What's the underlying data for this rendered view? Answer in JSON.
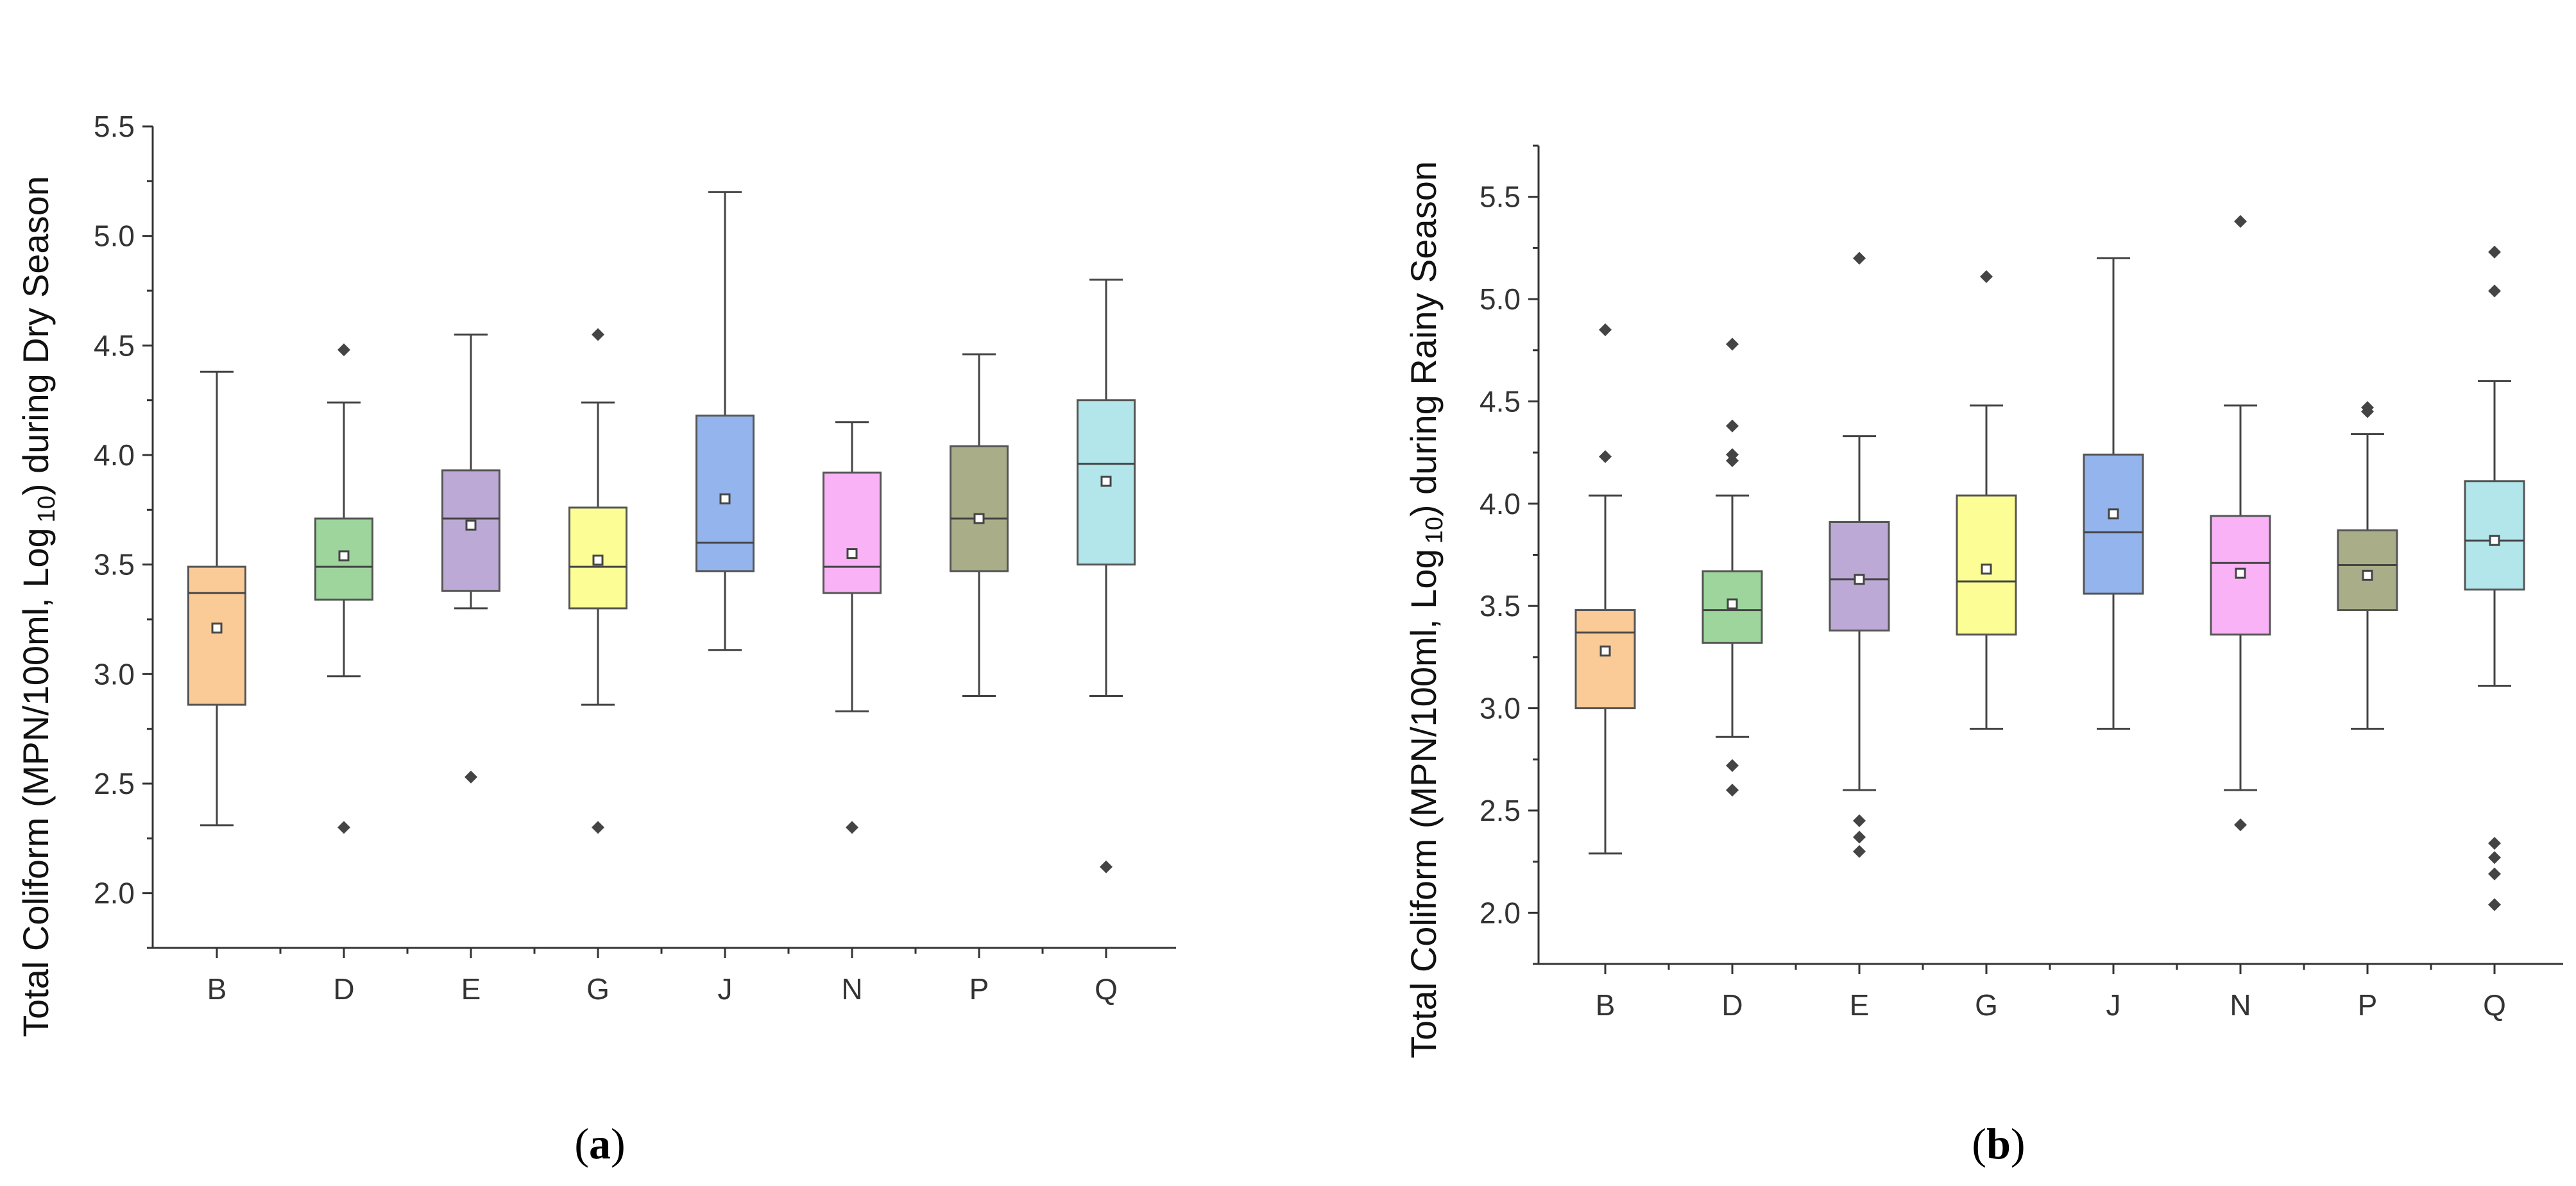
{
  "chart_data": [
    {
      "type": "box",
      "panel_label": "a",
      "ylabel": {
        "main": "Total Coliform (MPN/100ml, Log",
        "subscript": "10",
        "suffix": ") during Dry Season"
      },
      "ylim": [
        1.75,
        5.5
      ],
      "yticks": [
        "2.0",
        "2.5",
        "3.0",
        "3.5",
        "4.0",
        "4.5",
        "5.0",
        "5.5"
      ],
      "categories": [
        "B",
        "D",
        "E",
        "G",
        "J",
        "N",
        "P",
        "Q"
      ],
      "colors": [
        "#FBCB97",
        "#9DD59D",
        "#BCA9D5",
        "#FDFD96",
        "#94B4EE",
        "#F9B2F5",
        "#A9AE88",
        "#B3E6EB"
      ],
      "boxes": [
        {
          "min": 2.31,
          "q1": 2.86,
          "median": 3.37,
          "q3": 3.49,
          "max": 4.38,
          "mean": 3.21,
          "outliers": []
        },
        {
          "min": 2.99,
          "q1": 3.34,
          "median": 3.49,
          "q3": 3.71,
          "max": 4.24,
          "mean": 3.54,
          "outliers": [
            4.48,
            2.3
          ]
        },
        {
          "min": 3.3,
          "q1": 3.38,
          "median": 3.71,
          "q3": 3.93,
          "max": 4.55,
          "mean": 3.68,
          "outliers": [
            2.53
          ]
        },
        {
          "min": 2.86,
          "q1": 3.3,
          "median": 3.49,
          "q3": 3.76,
          "max": 4.24,
          "mean": 3.52,
          "outliers": [
            4.55,
            2.3
          ]
        },
        {
          "min": 3.11,
          "q1": 3.47,
          "median": 3.6,
          "q3": 4.18,
          "max": 5.2,
          "mean": 3.8,
          "outliers": []
        },
        {
          "min": 2.83,
          "q1": 3.37,
          "median": 3.49,
          "q3": 3.92,
          "max": 4.15,
          "mean": 3.55,
          "outliers": [
            2.3
          ]
        },
        {
          "min": 2.9,
          "q1": 3.47,
          "median": 3.71,
          "q3": 4.04,
          "max": 4.46,
          "mean": 3.71,
          "outliers": []
        },
        {
          "min": 2.9,
          "q1": 3.5,
          "median": 3.96,
          "q3": 4.25,
          "max": 4.8,
          "mean": 3.88,
          "outliers": [
            2.12
          ]
        }
      ]
    },
    {
      "type": "box",
      "panel_label": "b",
      "ylabel": {
        "main": "Total Coliform (MPN/100ml, Log",
        "subscript": "10",
        "suffix": ") during Rainy Season"
      },
      "ylim": [
        1.75,
        5.75
      ],
      "yticks": [
        "2.0",
        "2.5",
        "3.0",
        "3.5",
        "4.0",
        "4.5",
        "5.0",
        "5.5"
      ],
      "categories": [
        "B",
        "D",
        "E",
        "G",
        "J",
        "N",
        "P",
        "Q"
      ],
      "colors": [
        "#FBCB97",
        "#9DD59D",
        "#BCA9D5",
        "#FDFD96",
        "#94B4EE",
        "#F9B2F5",
        "#A9AE88",
        "#B3E6EB"
      ],
      "boxes": [
        {
          "min": 2.29,
          "q1": 3.0,
          "median": 3.37,
          "q3": 3.48,
          "max": 4.04,
          "mean": 3.28,
          "outliers": [
            4.85,
            4.23
          ]
        },
        {
          "min": 2.86,
          "q1": 3.32,
          "median": 3.48,
          "q3": 3.67,
          "max": 4.04,
          "mean": 3.51,
          "outliers": [
            4.78,
            4.38,
            4.24,
            4.21,
            2.72,
            2.6
          ]
        },
        {
          "min": 2.6,
          "q1": 3.38,
          "median": 3.63,
          "q3": 3.91,
          "max": 4.33,
          "mean": 3.63,
          "outliers": [
            5.2,
            2.45,
            2.37,
            2.3
          ]
        },
        {
          "min": 2.9,
          "q1": 3.36,
          "median": 3.62,
          "q3": 4.04,
          "max": 4.48,
          "mean": 3.68,
          "outliers": [
            5.11
          ]
        },
        {
          "min": 2.9,
          "q1": 3.56,
          "median": 3.86,
          "q3": 4.24,
          "max": 5.2,
          "mean": 3.95,
          "outliers": []
        },
        {
          "min": 2.6,
          "q1": 3.36,
          "median": 3.71,
          "q3": 3.94,
          "max": 4.48,
          "mean": 3.66,
          "outliers": [
            5.38,
            2.43
          ]
        },
        {
          "min": 2.9,
          "q1": 3.48,
          "median": 3.7,
          "q3": 3.87,
          "max": 4.34,
          "mean": 3.65,
          "outliers": [
            4.47,
            4.45
          ]
        },
        {
          "min": 3.11,
          "q1": 3.58,
          "median": 3.82,
          "q3": 4.11,
          "max": 4.6,
          "mean": 3.82,
          "outliers": [
            5.23,
            5.04,
            2.34,
            2.27,
            2.19,
            2.04
          ]
        }
      ]
    }
  ]
}
